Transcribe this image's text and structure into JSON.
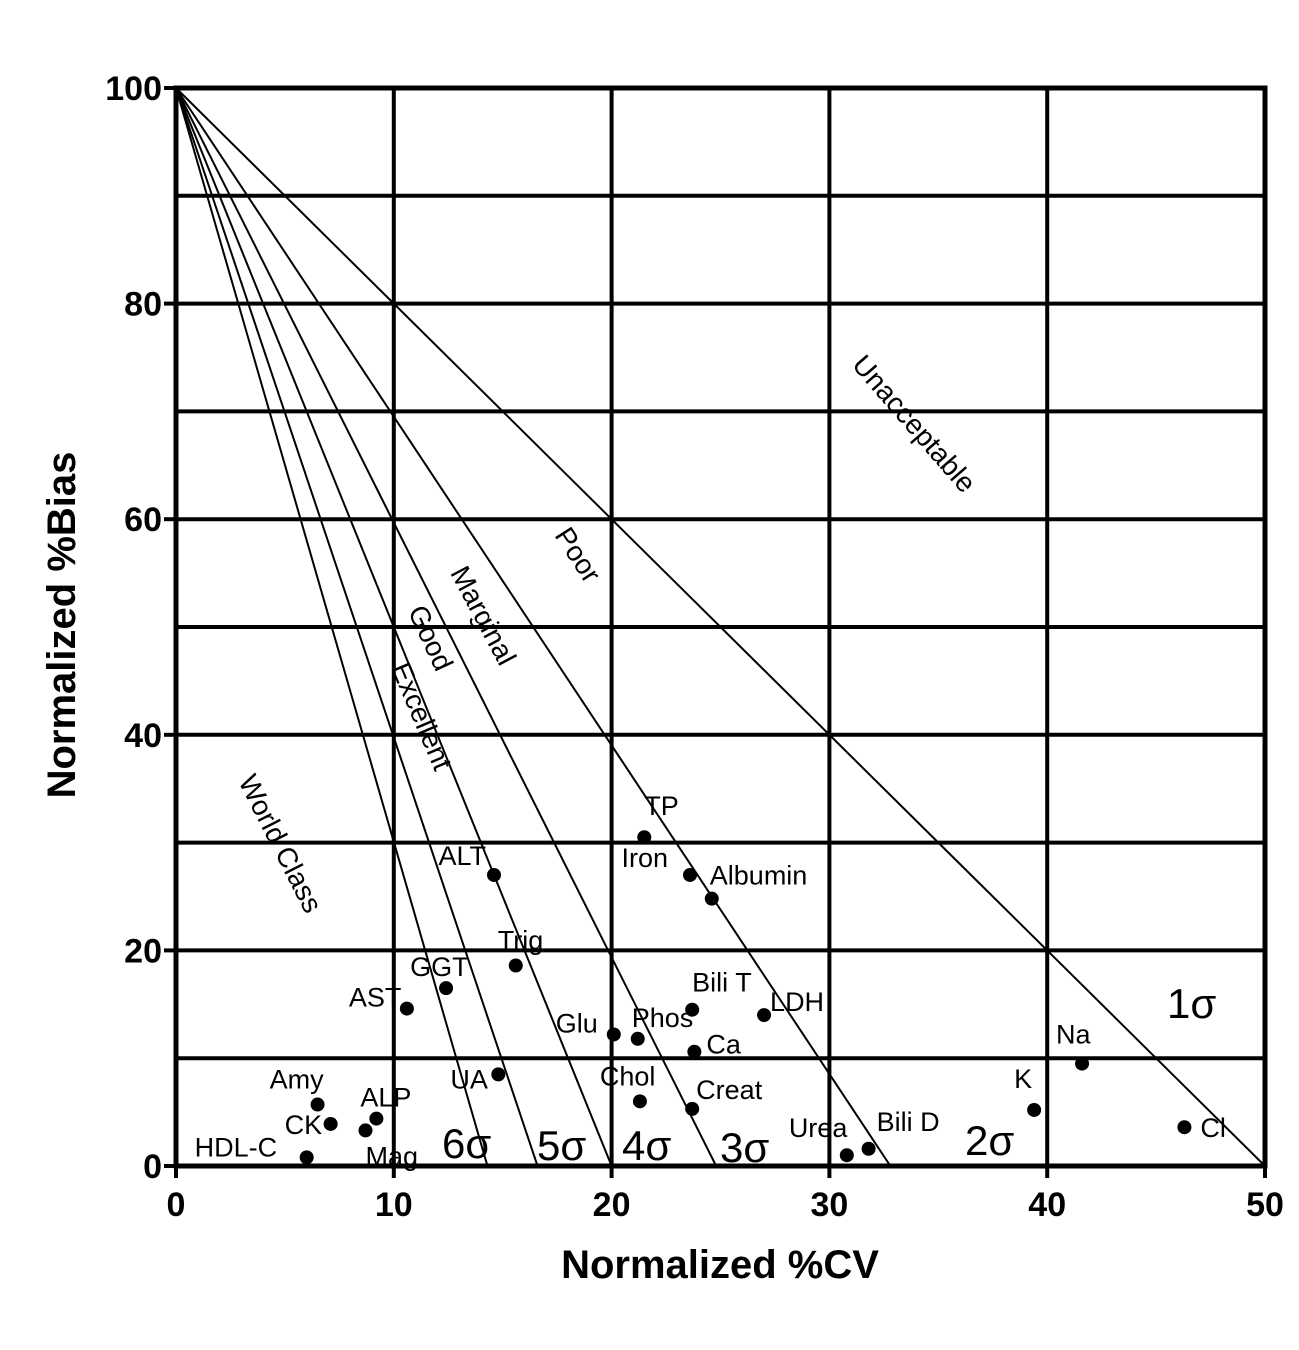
{
  "chart_data": {
    "type": "scatter",
    "xlabel": "Normalized %CV",
    "ylabel": "Normalized %Bias",
    "xlim": [
      0,
      50
    ],
    "ylim": [
      0,
      100
    ],
    "xticks": [
      0,
      10,
      20,
      30,
      40,
      50
    ],
    "yticks": [
      0,
      20,
      40,
      60,
      80,
      100
    ],
    "grid": true,
    "points": [
      {
        "label": "TP",
        "x": 21.5,
        "y": 30.5
      },
      {
        "label": "Iron",
        "x": 23.6,
        "y": 27.0
      },
      {
        "label": "Albumin",
        "x": 24.6,
        "y": 24.8
      },
      {
        "label": "ALT",
        "x": 14.6,
        "y": 27.0
      },
      {
        "label": "Trig",
        "x": 15.6,
        "y": 18.6
      },
      {
        "label": "GGT",
        "x": 12.4,
        "y": 16.5
      },
      {
        "label": "AST",
        "x": 10.6,
        "y": 14.6
      },
      {
        "label": "Bili T",
        "x": 23.7,
        "y": 14.5
      },
      {
        "label": "LDH",
        "x": 27.0,
        "y": 14.0
      },
      {
        "label": "Glu",
        "x": 20.1,
        "y": 12.2
      },
      {
        "label": "Phos",
        "x": 21.2,
        "y": 11.8
      },
      {
        "label": "Ca",
        "x": 23.8,
        "y": 10.6
      },
      {
        "label": "Na",
        "x": 41.6,
        "y": 9.5
      },
      {
        "label": "UA",
        "x": 14.8,
        "y": 8.5
      },
      {
        "label": "Amy",
        "x": 6.5,
        "y": 5.7
      },
      {
        "label": "Chol",
        "x": 21.3,
        "y": 6.0
      },
      {
        "label": "Creat",
        "x": 23.7,
        "y": 5.3
      },
      {
        "label": "K",
        "x": 39.4,
        "y": 5.2
      },
      {
        "label": "ALP",
        "x": 9.2,
        "y": 4.4
      },
      {
        "label": "CK",
        "x": 7.1,
        "y": 3.9
      },
      {
        "label": "Mag",
        "x": 8.7,
        "y": 3.3
      },
      {
        "label": "Cl",
        "x": 46.3,
        "y": 3.6
      },
      {
        "label": "Urea",
        "x": 30.8,
        "y": 1.0
      },
      {
        "label": "Bili D",
        "x": 31.8,
        "y": 1.6
      },
      {
        "label": "HDL-C",
        "x": 6.0,
        "y": 0.8
      }
    ],
    "sigma_lines": [
      {
        "sigma": 1,
        "x_intercept": 50.0
      },
      {
        "sigma": 2,
        "x_intercept": 32.8
      },
      {
        "sigma": 3,
        "x_intercept": 24.8
      },
      {
        "sigma": 4,
        "x_intercept": 20.0
      },
      {
        "sigma": 5,
        "x_intercept": 16.6
      },
      {
        "sigma": 6,
        "x_intercept": 14.3
      }
    ],
    "sigma_labels": [
      "1σ",
      "2σ",
      "3σ",
      "4σ",
      "5σ",
      "6σ"
    ],
    "zone_labels": [
      "Unacceptable",
      "Poor",
      "Marginal",
      "Good",
      "Excellent",
      "World Class"
    ]
  }
}
